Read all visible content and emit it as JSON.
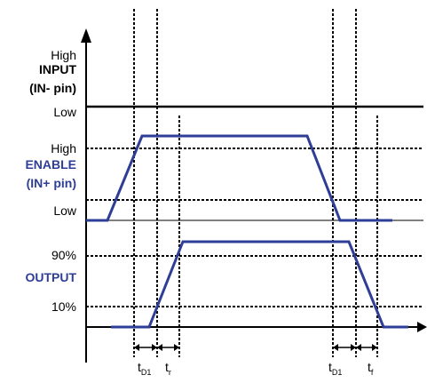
{
  "colors": {
    "accent": "#2e3e97",
    "axis": "#000000"
  },
  "axis": {
    "input_high": "High",
    "input_title": "INPUT",
    "input_pin": "(IN- pin)",
    "input_low": "Low",
    "enable_high": "High",
    "enable_title": "ENABLE",
    "enable_pin": "(IN+ pin)",
    "enable_low": "Low",
    "output_90": "90%",
    "output_title": "OUTPUT",
    "output_10": "10%"
  },
  "timing": {
    "td1_left": {
      "main": "t",
      "sub": "D1"
    },
    "tr": {
      "main": "t",
      "sub": "r"
    },
    "td1_right": {
      "main": "t",
      "sub": "D1"
    },
    "tf": {
      "main": "t",
      "sub": "f"
    }
  }
}
